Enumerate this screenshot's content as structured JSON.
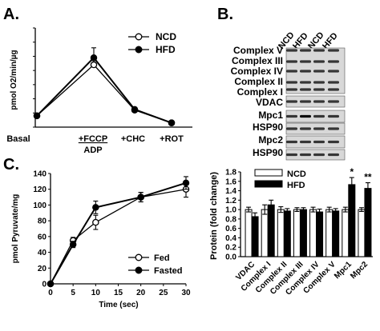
{
  "panel_labels": {
    "a": "A.",
    "b": "B.",
    "c": "C."
  },
  "colors": {
    "filled": "#000000",
    "open": "#ffffff",
    "band": "#000000",
    "blot_bg": "#dcdcdc"
  },
  "chart_data": [
    {
      "id": "A",
      "type": "line",
      "categories": [
        "Basal",
        "+FCCP",
        "+CHC",
        "+ROT"
      ],
      "category_sub": "ADP",
      "ylabel": "pmol O2/min/µg",
      "ylim": [
        0,
        70
      ],
      "yticks": [
        0,
        10,
        20,
        30,
        40,
        50,
        60,
        70
      ],
      "series": [
        {
          "name": "NCD",
          "marker": "open",
          "values": [
            8,
            44,
            12,
            3
          ],
          "errors": [
            1,
            3,
            1,
            0.5
          ]
        },
        {
          "name": "HFD",
          "marker": "filled",
          "values": [
            8,
            49,
            12.5,
            3
          ],
          "errors": [
            1,
            7,
            1,
            0.5
          ]
        }
      ],
      "legend": "top-right",
      "grid": false
    },
    {
      "id": "C",
      "type": "line",
      "x": [
        0,
        5,
        10,
        20,
        30
      ],
      "xlabel": "Time (sec)",
      "ylabel": "pmol Pyruvate/mg",
      "xlim": [
        0,
        30
      ],
      "xticks": [
        0,
        5,
        10,
        15,
        20,
        25,
        30
      ],
      "ylim": [
        0,
        140
      ],
      "yticks": [
        0,
        20,
        40,
        60,
        80,
        100,
        120,
        140
      ],
      "series": [
        {
          "name": "Fed",
          "marker": "open",
          "values": [
            0,
            55,
            78,
            110,
            120
          ],
          "errors": [
            0,
            4,
            9,
            6,
            10
          ]
        },
        {
          "name": "Fasted",
          "marker": "filled",
          "values": [
            0,
            50,
            97,
            110,
            128
          ],
          "errors": [
            0,
            4,
            8,
            6,
            8
          ]
        }
      ],
      "legend": "bottom-right",
      "grid": false
    },
    {
      "id": "B-blot",
      "type": "table",
      "lanes": [
        "NCD",
        "HFD",
        "NCD",
        "HFD"
      ],
      "bands": [
        "Complex V",
        "Complex III",
        "Complex IV",
        "Complex II",
        "Complex I",
        "VDAC",
        "Mpc1",
        "HSP90",
        "Mpc2",
        "HSP90"
      ]
    },
    {
      "id": "B-bar",
      "type": "bar",
      "categories": [
        "VDAC",
        "Complex I",
        "Complex II",
        "Complex III",
        "Complex IV",
        "Complex V",
        "Mpc1",
        "Mpc2"
      ],
      "ylabel": "Protein (fold change)",
      "ylim": [
        0,
        1.8
      ],
      "yticks": [
        0,
        0.2,
        0.4,
        0.6,
        0.8,
        1.0,
        1.2,
        1.4,
        1.6,
        1.8
      ],
      "series": [
        {
          "name": "NCD",
          "fill": "open",
          "values": [
            1.0,
            1.0,
            1.0,
            1.0,
            1.0,
            1.0,
            1.0,
            1.0
          ],
          "errors": [
            0.05,
            0.1,
            0.06,
            0.04,
            0.05,
            0.05,
            0.05,
            0.04
          ]
        },
        {
          "name": "HFD",
          "fill": "filled",
          "values": [
            0.85,
            1.1,
            0.97,
            1.0,
            0.95,
            0.97,
            1.53,
            1.45
          ],
          "errors": [
            0.08,
            0.1,
            0.05,
            0.04,
            0.06,
            0.05,
            0.15,
            0.12
          ]
        }
      ],
      "annotations": [
        {
          "category": "Mpc1",
          "text": "*"
        },
        {
          "category": "Mpc2",
          "text": "**"
        }
      ],
      "legend": "top"
    }
  ]
}
